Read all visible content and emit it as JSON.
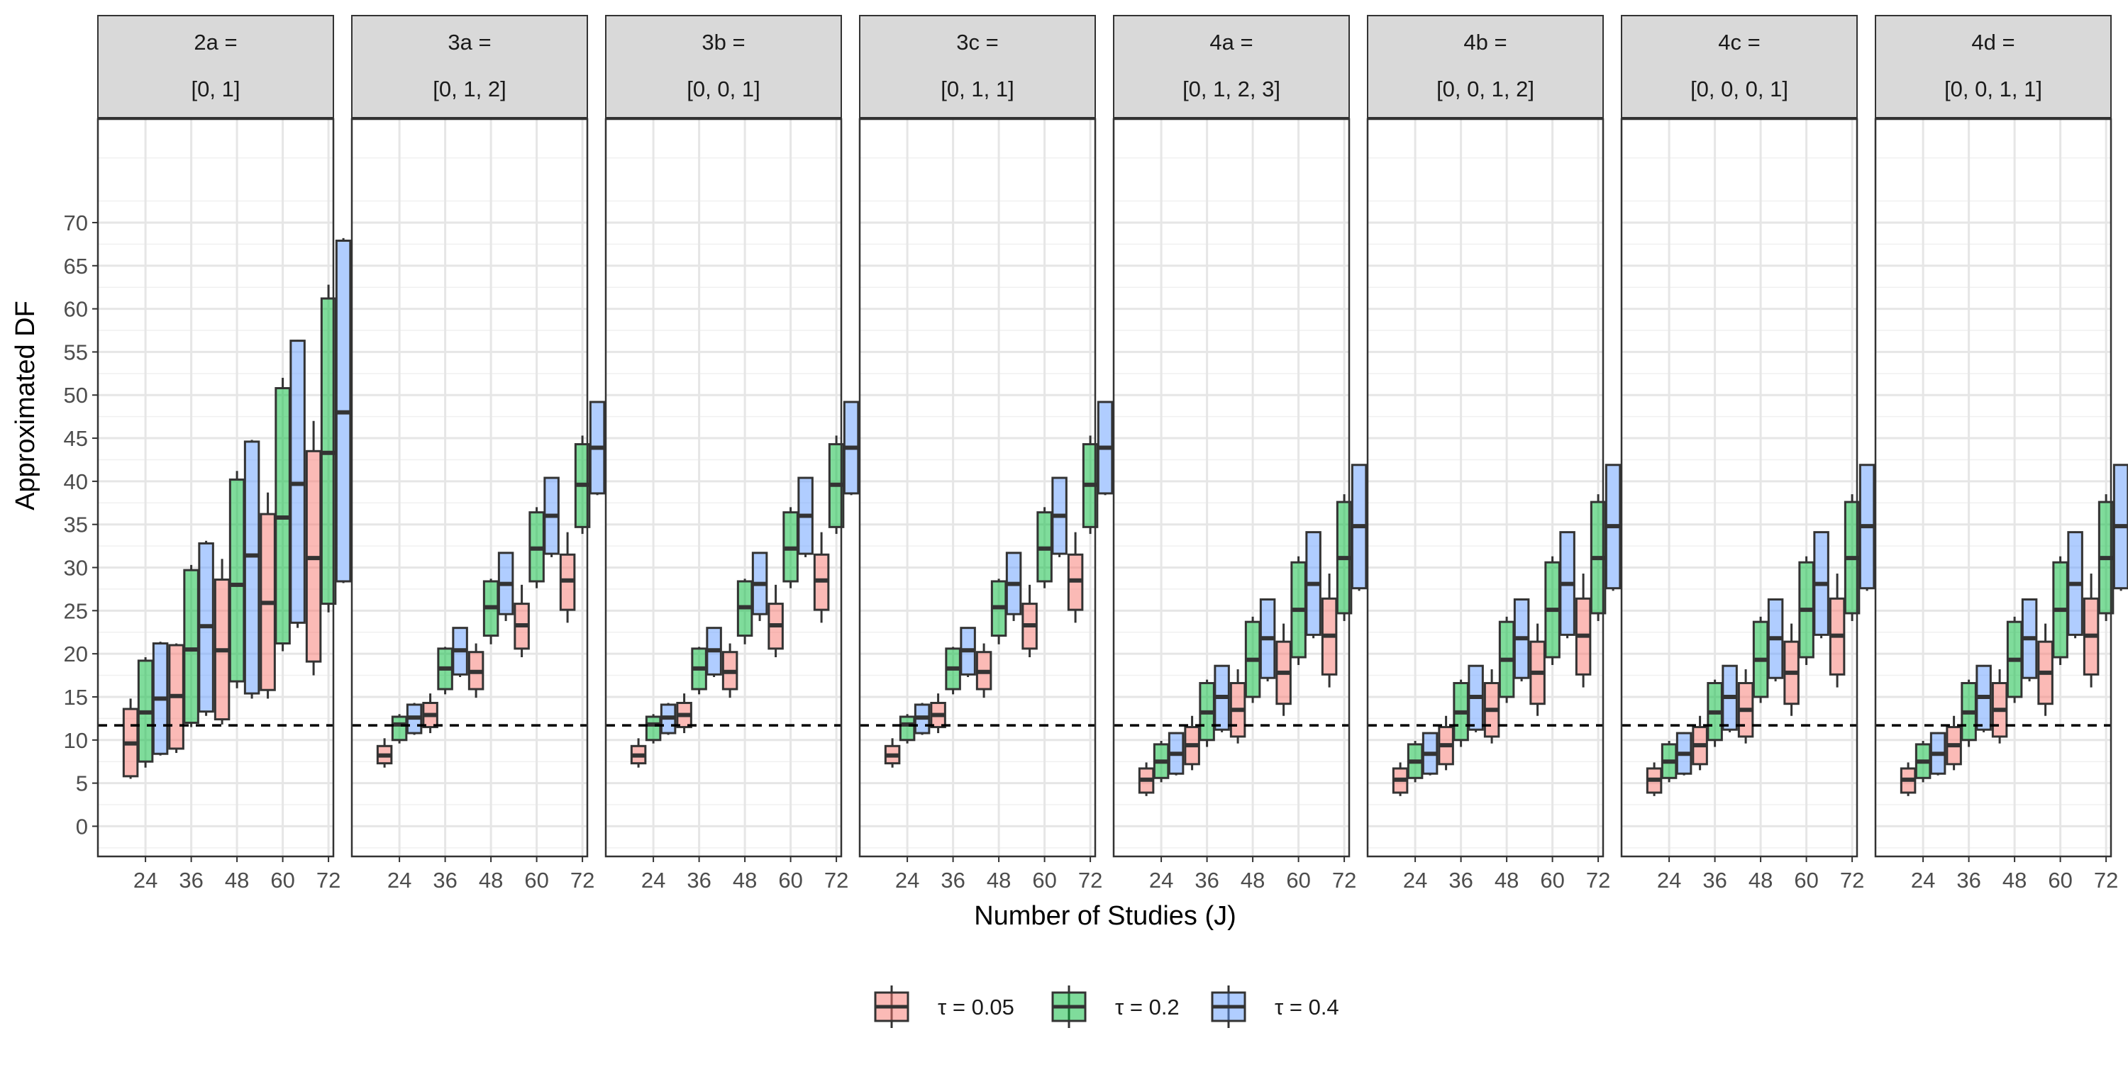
{
  "chart_data": {
    "type": "boxplot",
    "xlabel": "Number of Studies (J)",
    "ylabel": "Approximated DF",
    "ylim": [
      -3.5,
      82
    ],
    "yticks": [
      0,
      5,
      10,
      15,
      20,
      25,
      30,
      35,
      40,
      45,
      50,
      55,
      60,
      65,
      70
    ],
    "categories": [
      "24",
      "36",
      "48",
      "60",
      "72"
    ],
    "reference_line": 11.7,
    "legend": {
      "position": "bottom"
    },
    "series": [
      {
        "name": "τ = 0.05",
        "color": "#F8766D"
      },
      {
        "name": "τ = 0.2",
        "color": "#00BA38"
      },
      {
        "name": "τ = 0.4",
        "color": "#619CFF"
      }
    ],
    "panels": [
      {
        "title_line1": "2a =",
        "title_line2": "[0, 1]",
        "boxes": [
          [
            [
              5.5,
              5.8,
              9.6,
              13.6,
              14.8
            ],
            [
              6.8,
              7.5,
              13.2,
              19.2,
              19.6
            ],
            [
              8.2,
              8.4,
              14.8,
              21.2,
              21.4
            ]
          ],
          [
            [
              8.5,
              9.0,
              15.1,
              21.0,
              21.2
            ],
            [
              11.5,
              12.0,
              20.5,
              29.7,
              30.3
            ],
            [
              12.8,
              13.3,
              23.2,
              32.8,
              33.1
            ]
          ],
          [
            [
              11.8,
              12.4,
              20.4,
              28.6,
              31.0
            ],
            [
              16.0,
              16.8,
              28.0,
              40.2,
              41.2
            ],
            [
              14.8,
              15.4,
              31.4,
              44.6,
              44.8
            ]
          ],
          [
            [
              14.8,
              15.8,
              25.9,
              36.2,
              38.7
            ],
            [
              20.3,
              21.2,
              35.8,
              50.8,
              52.0
            ],
            [
              23.0,
              23.6,
              39.7,
              56.3,
              56.4
            ]
          ],
          [
            [
              17.5,
              19.1,
              31.1,
              43.5,
              47.0
            ],
            [
              24.8,
              25.8,
              43.3,
              61.2,
              62.8
            ],
            [
              28.2,
              28.4,
              48.0,
              67.9,
              68.2
            ]
          ]
        ]
      },
      {
        "title_line1": "3a =",
        "title_line2": "[0, 1, 2]",
        "boxes": [
          [
            [
              6.8,
              7.3,
              8.2,
              9.3,
              10.2
            ],
            [
              9.6,
              10.0,
              11.8,
              12.7,
              13.0
            ],
            [
              10.6,
              10.8,
              12.6,
              14.1,
              14.3
            ]
          ],
          [
            [
              10.8,
              11.5,
              12.9,
              14.3,
              15.4
            ],
            [
              15.3,
              15.9,
              18.3,
              20.6,
              20.8
            ],
            [
              17.3,
              17.6,
              20.4,
              23.0,
              23.1
            ]
          ],
          [
            [
              14.9,
              15.9,
              17.9,
              20.2,
              21.2
            ],
            [
              21.1,
              22.1,
              25.4,
              28.4,
              28.7
            ],
            [
              23.8,
              24.6,
              28.1,
              31.7,
              31.8
            ]
          ],
          [
            [
              19.6,
              20.6,
              23.3,
              25.8,
              28.0
            ],
            [
              27.6,
              28.4,
              32.2,
              36.4,
              37.0
            ],
            [
              31.2,
              31.6,
              36.0,
              40.4,
              40.5
            ]
          ],
          [
            [
              23.6,
              25.1,
              28.5,
              31.5,
              34.1
            ],
            [
              33.9,
              34.7,
              39.6,
              44.3,
              45.3
            ],
            [
              38.4,
              38.6,
              43.9,
              49.2,
              49.3
            ]
          ]
        ]
      },
      {
        "title_line1": "3b =",
        "title_line2": "[0, 0, 1]",
        "boxes": [
          [
            [
              6.8,
              7.3,
              8.2,
              9.3,
              10.2
            ],
            [
              9.6,
              10.0,
              11.8,
              12.7,
              13.0
            ],
            [
              10.6,
              10.8,
              12.6,
              14.1,
              14.3
            ]
          ],
          [
            [
              10.8,
              11.5,
              12.9,
              14.3,
              15.4
            ],
            [
              15.3,
              15.9,
              18.3,
              20.6,
              20.8
            ],
            [
              17.3,
              17.6,
              20.4,
              23.0,
              23.1
            ]
          ],
          [
            [
              14.9,
              15.9,
              17.9,
              20.2,
              21.2
            ],
            [
              21.1,
              22.1,
              25.4,
              28.4,
              28.7
            ],
            [
              23.8,
              24.6,
              28.1,
              31.7,
              31.8
            ]
          ],
          [
            [
              19.6,
              20.6,
              23.3,
              25.8,
              28.0
            ],
            [
              27.6,
              28.4,
              32.2,
              36.4,
              37.0
            ],
            [
              31.2,
              31.6,
              36.0,
              40.4,
              40.5
            ]
          ],
          [
            [
              23.6,
              25.1,
              28.5,
              31.5,
              34.1
            ],
            [
              33.9,
              34.7,
              39.6,
              44.3,
              45.3
            ],
            [
              38.4,
              38.6,
              43.9,
              49.2,
              49.3
            ]
          ]
        ]
      },
      {
        "title_line1": "3c =",
        "title_line2": "[0, 1, 1]",
        "boxes": [
          [
            [
              6.8,
              7.3,
              8.2,
              9.3,
              10.2
            ],
            [
              9.6,
              10.0,
              11.8,
              12.7,
              13.0
            ],
            [
              10.6,
              10.8,
              12.6,
              14.1,
              14.3
            ]
          ],
          [
            [
              10.8,
              11.5,
              12.9,
              14.3,
              15.4
            ],
            [
              15.3,
              15.9,
              18.3,
              20.6,
              20.8
            ],
            [
              17.3,
              17.6,
              20.4,
              23.0,
              23.1
            ]
          ],
          [
            [
              14.9,
              15.9,
              17.9,
              20.2,
              21.2
            ],
            [
              21.1,
              22.1,
              25.4,
              28.4,
              28.7
            ],
            [
              23.8,
              24.6,
              28.1,
              31.7,
              31.8
            ]
          ],
          [
            [
              19.6,
              20.6,
              23.3,
              25.8,
              28.0
            ],
            [
              27.6,
              28.4,
              32.2,
              36.4,
              37.0
            ],
            [
              31.2,
              31.6,
              36.0,
              40.4,
              40.5
            ]
          ],
          [
            [
              23.6,
              25.1,
              28.5,
              31.5,
              34.1
            ],
            [
              33.9,
              34.7,
              39.6,
              44.3,
              45.3
            ],
            [
              38.4,
              38.6,
              43.9,
              49.2,
              49.3
            ]
          ]
        ]
      },
      {
        "title_line1": "4a =",
        "title_line2": "[0, 1, 2, 3]",
        "boxes": [
          [
            [
              3.5,
              3.9,
              5.4,
              6.7,
              7.4
            ],
            [
              5.1,
              5.6,
              7.5,
              9.5,
              9.9
            ],
            [
              5.9,
              6.1,
              8.4,
              10.8,
              10.9
            ]
          ],
          [
            [
              6.5,
              7.2,
              9.4,
              11.5,
              12.8
            ],
            [
              9.2,
              10.0,
              13.2,
              16.6,
              17.0
            ],
            [
              10.9,
              11.2,
              15.0,
              18.6,
              18.7
            ]
          ],
          [
            [
              9.6,
              10.4,
              13.5,
              16.6,
              18.2
            ],
            [
              14.3,
              15.0,
              19.3,
              23.7,
              24.3
            ],
            [
              16.8,
              17.2,
              21.8,
              26.3,
              26.4
            ]
          ],
          [
            [
              12.8,
              14.2,
              17.8,
              21.4,
              23.5
            ],
            [
              18.7,
              19.6,
              25.1,
              30.6,
              31.3
            ],
            [
              21.8,
              22.2,
              28.1,
              34.1,
              34.2
            ]
          ],
          [
            [
              16.1,
              17.6,
              22.1,
              26.4,
              29.3
            ],
            [
              23.8,
              24.7,
              31.1,
              37.6,
              38.5
            ],
            [
              27.3,
              27.6,
              34.8,
              41.9,
              42.0
            ]
          ]
        ]
      },
      {
        "title_line1": "4b =",
        "title_line2": "[0, 0, 1, 2]",
        "boxes": [
          [
            [
              3.5,
              3.9,
              5.4,
              6.7,
              7.4
            ],
            [
              5.1,
              5.6,
              7.5,
              9.5,
              9.9
            ],
            [
              5.9,
              6.1,
              8.4,
              10.8,
              10.9
            ]
          ],
          [
            [
              6.5,
              7.2,
              9.4,
              11.5,
              12.8
            ],
            [
              9.2,
              10.0,
              13.2,
              16.6,
              17.0
            ],
            [
              10.9,
              11.2,
              15.0,
              18.6,
              18.7
            ]
          ],
          [
            [
              9.6,
              10.4,
              13.5,
              16.6,
              18.2
            ],
            [
              14.3,
              15.0,
              19.3,
              23.7,
              24.3
            ],
            [
              16.8,
              17.2,
              21.8,
              26.3,
              26.4
            ]
          ],
          [
            [
              12.8,
              14.2,
              17.8,
              21.4,
              23.5
            ],
            [
              18.7,
              19.6,
              25.1,
              30.6,
              31.3
            ],
            [
              21.8,
              22.2,
              28.1,
              34.1,
              34.2
            ]
          ],
          [
            [
              16.1,
              17.6,
              22.1,
              26.4,
              29.3
            ],
            [
              23.8,
              24.7,
              31.1,
              37.6,
              38.5
            ],
            [
              27.3,
              27.6,
              34.8,
              41.9,
              42.0
            ]
          ]
        ]
      },
      {
        "title_line1": "4c =",
        "title_line2": "[0, 0, 0, 1]",
        "boxes": [
          [
            [
              3.5,
              3.9,
              5.4,
              6.7,
              7.4
            ],
            [
              5.1,
              5.6,
              7.5,
              9.5,
              9.9
            ],
            [
              5.9,
              6.1,
              8.4,
              10.8,
              10.9
            ]
          ],
          [
            [
              6.5,
              7.2,
              9.4,
              11.5,
              12.8
            ],
            [
              9.2,
              10.0,
              13.2,
              16.6,
              17.0
            ],
            [
              10.9,
              11.2,
              15.0,
              18.6,
              18.7
            ]
          ],
          [
            [
              9.6,
              10.4,
              13.5,
              16.6,
              18.2
            ],
            [
              14.3,
              15.0,
              19.3,
              23.7,
              24.3
            ],
            [
              16.8,
              17.2,
              21.8,
              26.3,
              26.4
            ]
          ],
          [
            [
              12.8,
              14.2,
              17.8,
              21.4,
              23.5
            ],
            [
              18.7,
              19.6,
              25.1,
              30.6,
              31.3
            ],
            [
              21.8,
              22.2,
              28.1,
              34.1,
              34.2
            ]
          ],
          [
            [
              16.1,
              17.6,
              22.1,
              26.4,
              29.3
            ],
            [
              23.8,
              24.7,
              31.1,
              37.6,
              38.5
            ],
            [
              27.3,
              27.6,
              34.8,
              41.9,
              42.0
            ]
          ]
        ]
      },
      {
        "title_line1": "4d =",
        "title_line2": "[0, 0, 1, 1]",
        "boxes": [
          [
            [
              3.5,
              3.9,
              5.4,
              6.7,
              7.4
            ],
            [
              5.1,
              5.6,
              7.5,
              9.5,
              9.9
            ],
            [
              5.9,
              6.1,
              8.4,
              10.8,
              10.9
            ]
          ],
          [
            [
              6.5,
              7.2,
              9.4,
              11.5,
              12.8
            ],
            [
              9.2,
              10.0,
              13.2,
              16.6,
              17.0
            ],
            [
              10.9,
              11.2,
              15.0,
              18.6,
              18.7
            ]
          ],
          [
            [
              9.6,
              10.4,
              13.5,
              16.6,
              18.2
            ],
            [
              14.3,
              15.0,
              19.3,
              23.7,
              24.3
            ],
            [
              16.8,
              17.2,
              21.8,
              26.3,
              26.4
            ]
          ],
          [
            [
              12.8,
              14.2,
              17.8,
              21.4,
              23.5
            ],
            [
              18.7,
              19.6,
              25.1,
              30.6,
              31.3
            ],
            [
              21.8,
              22.2,
              28.1,
              34.1,
              34.2
            ]
          ],
          [
            [
              16.1,
              17.6,
              22.1,
              26.4,
              29.3
            ],
            [
              23.8,
              24.7,
              31.1,
              37.6,
              38.5
            ],
            [
              27.3,
              27.6,
              34.8,
              41.9,
              42.0
            ]
          ]
        ]
      }
    ]
  }
}
